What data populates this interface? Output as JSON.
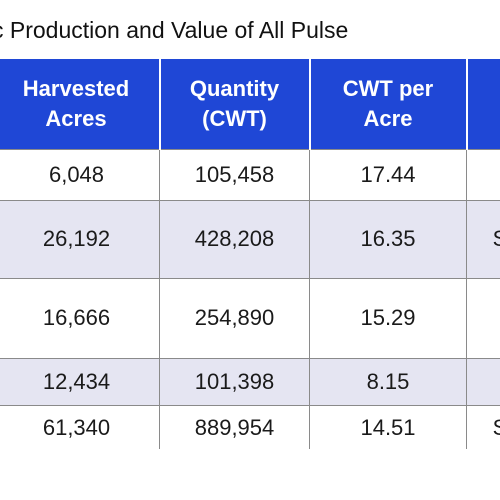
{
  "title": "c Production and Value of All Pulse",
  "table": {
    "headers": [
      "Harvested Acres",
      "Quantity (CWT)",
      "CWT per Acre",
      ""
    ],
    "header_lines": [
      [
        "Harvested",
        "Acres"
      ],
      [
        "Quantity",
        "(CWT)"
      ],
      [
        "CWT per",
        "Acre"
      ],
      [
        "",
        ""
      ]
    ],
    "rows": [
      [
        "6,048",
        "105,458",
        "17.44",
        ""
      ],
      [
        "26,192",
        "428,208",
        "16.35",
        "S"
      ],
      [
        "16,666",
        "254,890",
        "15.29",
        ""
      ],
      [
        "12,434",
        "101,398",
        "8.15",
        ""
      ],
      [
        "61,340",
        "889,954",
        "14.51",
        "S"
      ]
    ]
  },
  "colors": {
    "header_background": "#1f47d6",
    "header_text": "#ffffff",
    "shaded_row": "#e5e5f2",
    "border": "#8a8a8a"
  }
}
